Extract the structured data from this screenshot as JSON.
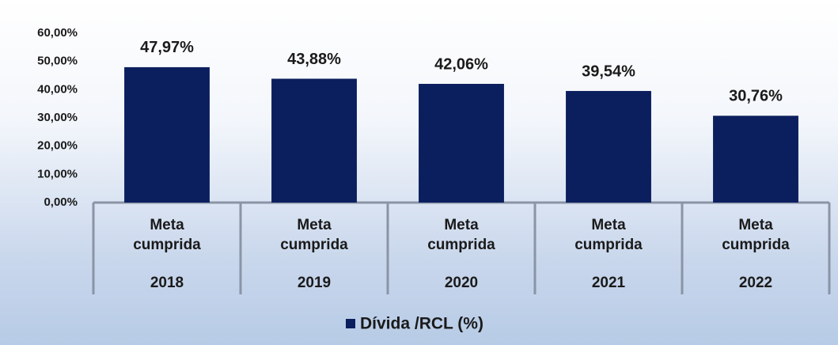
{
  "chart_data": {
    "type": "bar",
    "categories": [
      "2018",
      "2019",
      "2020",
      "2021",
      "2022"
    ],
    "sublabels": [
      "Meta cumprida",
      "Meta cumprida",
      "Meta cumprida",
      "Meta cumprida",
      "Meta cumprida"
    ],
    "series": [
      {
        "name": "Dívida /RCL (%)",
        "color": "#0b1f5e",
        "values": [
          47.97,
          43.88,
          42.06,
          39.54,
          30.76
        ],
        "value_labels": [
          "47,97%",
          "43,88%",
          "42,06%",
          "39,54%",
          "30,76%"
        ]
      }
    ],
    "ylim": [
      0,
      60
    ],
    "yticks": [
      {
        "value": 0,
        "label": "0,00%"
      },
      {
        "value": 10,
        "label": "10,00%"
      },
      {
        "value": 20,
        "label": "20,00%"
      },
      {
        "value": 30,
        "label": "30,00%"
      },
      {
        "value": 40,
        "label": "40,00%"
      },
      {
        "value": 50,
        "label": "50,00%"
      },
      {
        "value": 60,
        "label": "60,00%"
      }
    ],
    "grid": false,
    "legend": "bottom"
  }
}
